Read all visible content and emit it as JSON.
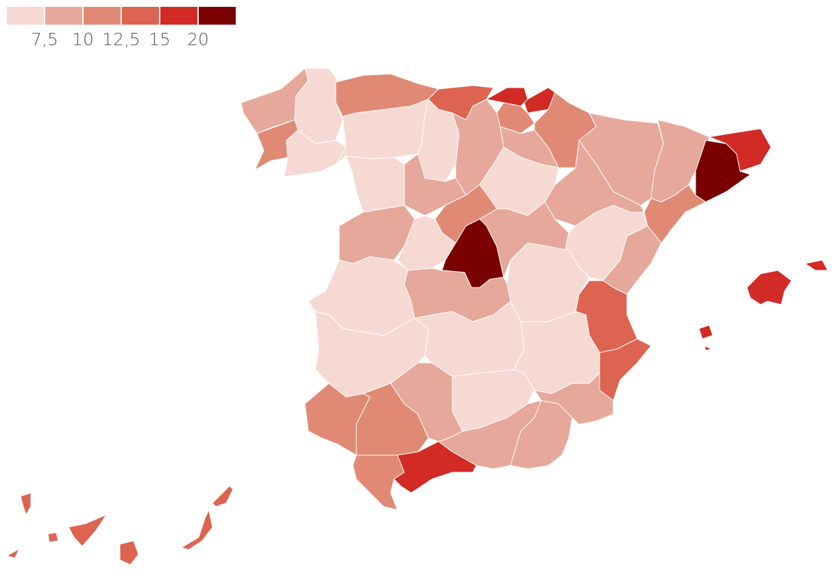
{
  "legend": {
    "colors": [
      "#f6d9d3",
      "#e6a89b",
      "#e08a76",
      "#dc6450",
      "#d22a25",
      "#7a0000"
    ],
    "labels": [
      "7,5",
      "10",
      "12,5",
      "15",
      "20"
    ]
  }
}
